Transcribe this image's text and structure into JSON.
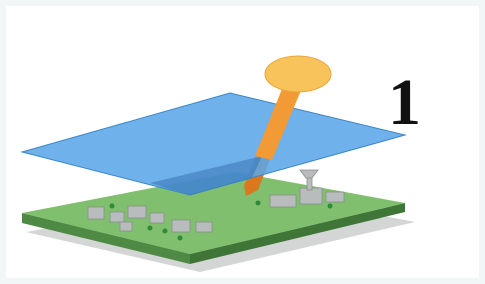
{
  "label": "1"
}
